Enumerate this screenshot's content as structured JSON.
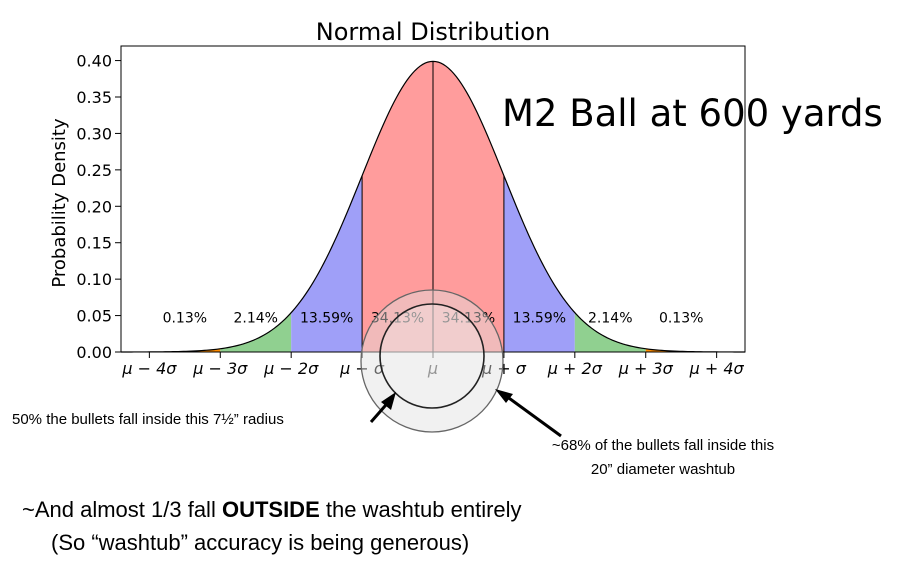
{
  "chart_data": {
    "type": "area",
    "title": "Normal Distribution",
    "ylabel": "Probability Density",
    "xlabel": "",
    "xlim": [
      -4.4,
      4.4
    ],
    "ylim": [
      0,
      0.42
    ],
    "y_ticks": [
      0.0,
      0.05,
      0.1,
      0.15,
      0.2,
      0.25,
      0.3,
      0.35,
      0.4
    ],
    "y_tick_labels": [
      "0.00",
      "0.05",
      "0.10",
      "0.15",
      "0.20",
      "0.25",
      "0.30",
      "0.35",
      "0.40"
    ],
    "x_ticks": [
      -4,
      -3,
      -2,
      -1,
      0,
      1,
      2,
      3,
      4
    ],
    "x_tick_labels": [
      "μ − 4σ",
      "μ − 3σ",
      "μ − 2σ",
      "μ − σ",
      "μ",
      "μ + σ",
      "μ + 2σ",
      "μ + 3σ",
      "μ + 4σ"
    ],
    "grid": false,
    "curve": {
      "mean": 0,
      "std": 1,
      "peak_density": 0.399
    },
    "regions": [
      {
        "from": -4,
        "to": -3,
        "percent_label": "0.13%",
        "color": "#ff8c00"
      },
      {
        "from": -3,
        "to": -2,
        "percent_label": "2.14%",
        "color": "#90d090"
      },
      {
        "from": -2,
        "to": -1,
        "percent_label": "13.59%",
        "color": "#9f9ff8"
      },
      {
        "from": -1,
        "to": 0,
        "percent_label": "34.13%",
        "color": "#ff9c9c"
      },
      {
        "from": 0,
        "to": 1,
        "percent_label": "34.13%",
        "color": "#ff9c9c"
      },
      {
        "from": 1,
        "to": 2,
        "percent_label": "13.59%",
        "color": "#9f9ff8"
      },
      {
        "from": 2,
        "to": 3,
        "percent_label": "2.14%",
        "color": "#90d090"
      },
      {
        "from": 3,
        "to": 4,
        "percent_label": "0.13%",
        "color": "#ff8c00"
      }
    ]
  },
  "overlay": {
    "headline": "M2 Ball at 600 yards",
    "note_inner_circle": "50% the bullets fall inside this 7½” radius",
    "note_outer_line1": "~68% of the bullets fall inside this",
    "note_outer_line2": "20” diameter washtub",
    "footer_prefix": "~And almost 1/3 fall ",
    "footer_bold": "OUTSIDE",
    "footer_suffix": " the washtub entirely",
    "footer_line2": "(So “washtub” accuracy is being generous)"
  }
}
